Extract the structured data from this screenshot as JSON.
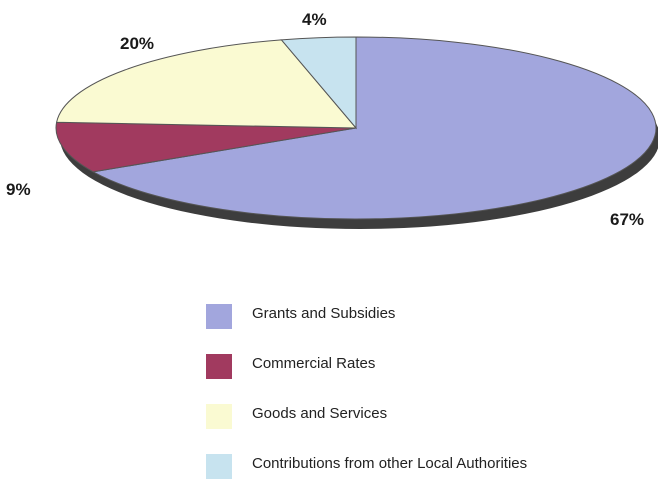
{
  "chart_data": {
    "type": "pie",
    "title": "",
    "slices": [
      {
        "name": "Grants and Subsidies",
        "value": 67,
        "label": "67%",
        "color": "#a2a6dd"
      },
      {
        "name": "Commercial Rates",
        "value": 9,
        "label": "9%",
        "color": "#a13a5f"
      },
      {
        "name": "Goods and Services",
        "value": 20,
        "label": "20%",
        "color": "#fafad2"
      },
      {
        "name": "Contributions from other Local Authorities",
        "value": 4,
        "label": "4%",
        "color": "#c7e3ef"
      }
    ],
    "legend_position": "bottom"
  }
}
